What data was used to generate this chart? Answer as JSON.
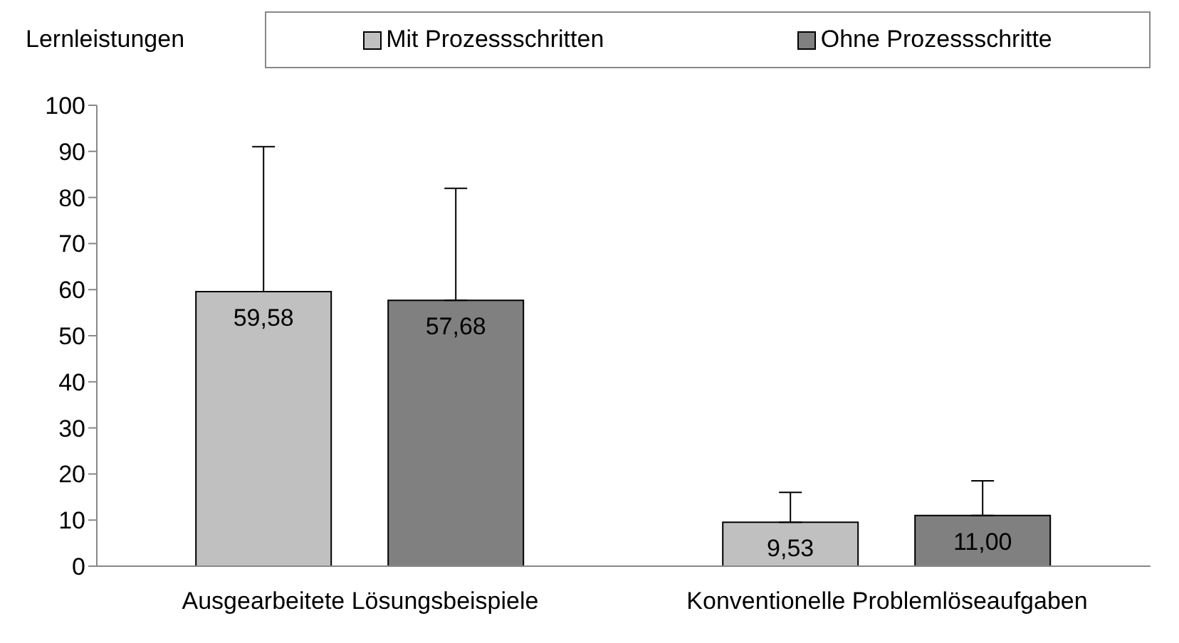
{
  "chart_data": {
    "type": "bar",
    "ylabel": "Lernleistungen",
    "categories": [
      "Ausgearbeitete Lösungsbeispiele",
      "Konventionelle Problemlöseaufgaben"
    ],
    "series": [
      {
        "name": "Mit Prozessschritten",
        "color": "#c0c0c0",
        "values": [
          59.58,
          9.53
        ],
        "value_labels": [
          "59,58",
          "9,53"
        ],
        "errors": [
          [
            59.58,
            91
          ],
          [
            9.53,
            16
          ]
        ]
      },
      {
        "name": "Ohne Prozessschritte",
        "color": "#808080",
        "values": [
          57.68,
          11.0
        ],
        "value_labels": [
          "57,68",
          "11,00"
        ],
        "errors": [
          [
            57.68,
            82
          ],
          [
            11.0,
            18.5
          ]
        ]
      }
    ],
    "ylim": [
      0,
      100
    ],
    "yticks": [
      0,
      10,
      20,
      30,
      40,
      50,
      60,
      70,
      80,
      90,
      100
    ],
    "grid": false,
    "legend": "top"
  }
}
